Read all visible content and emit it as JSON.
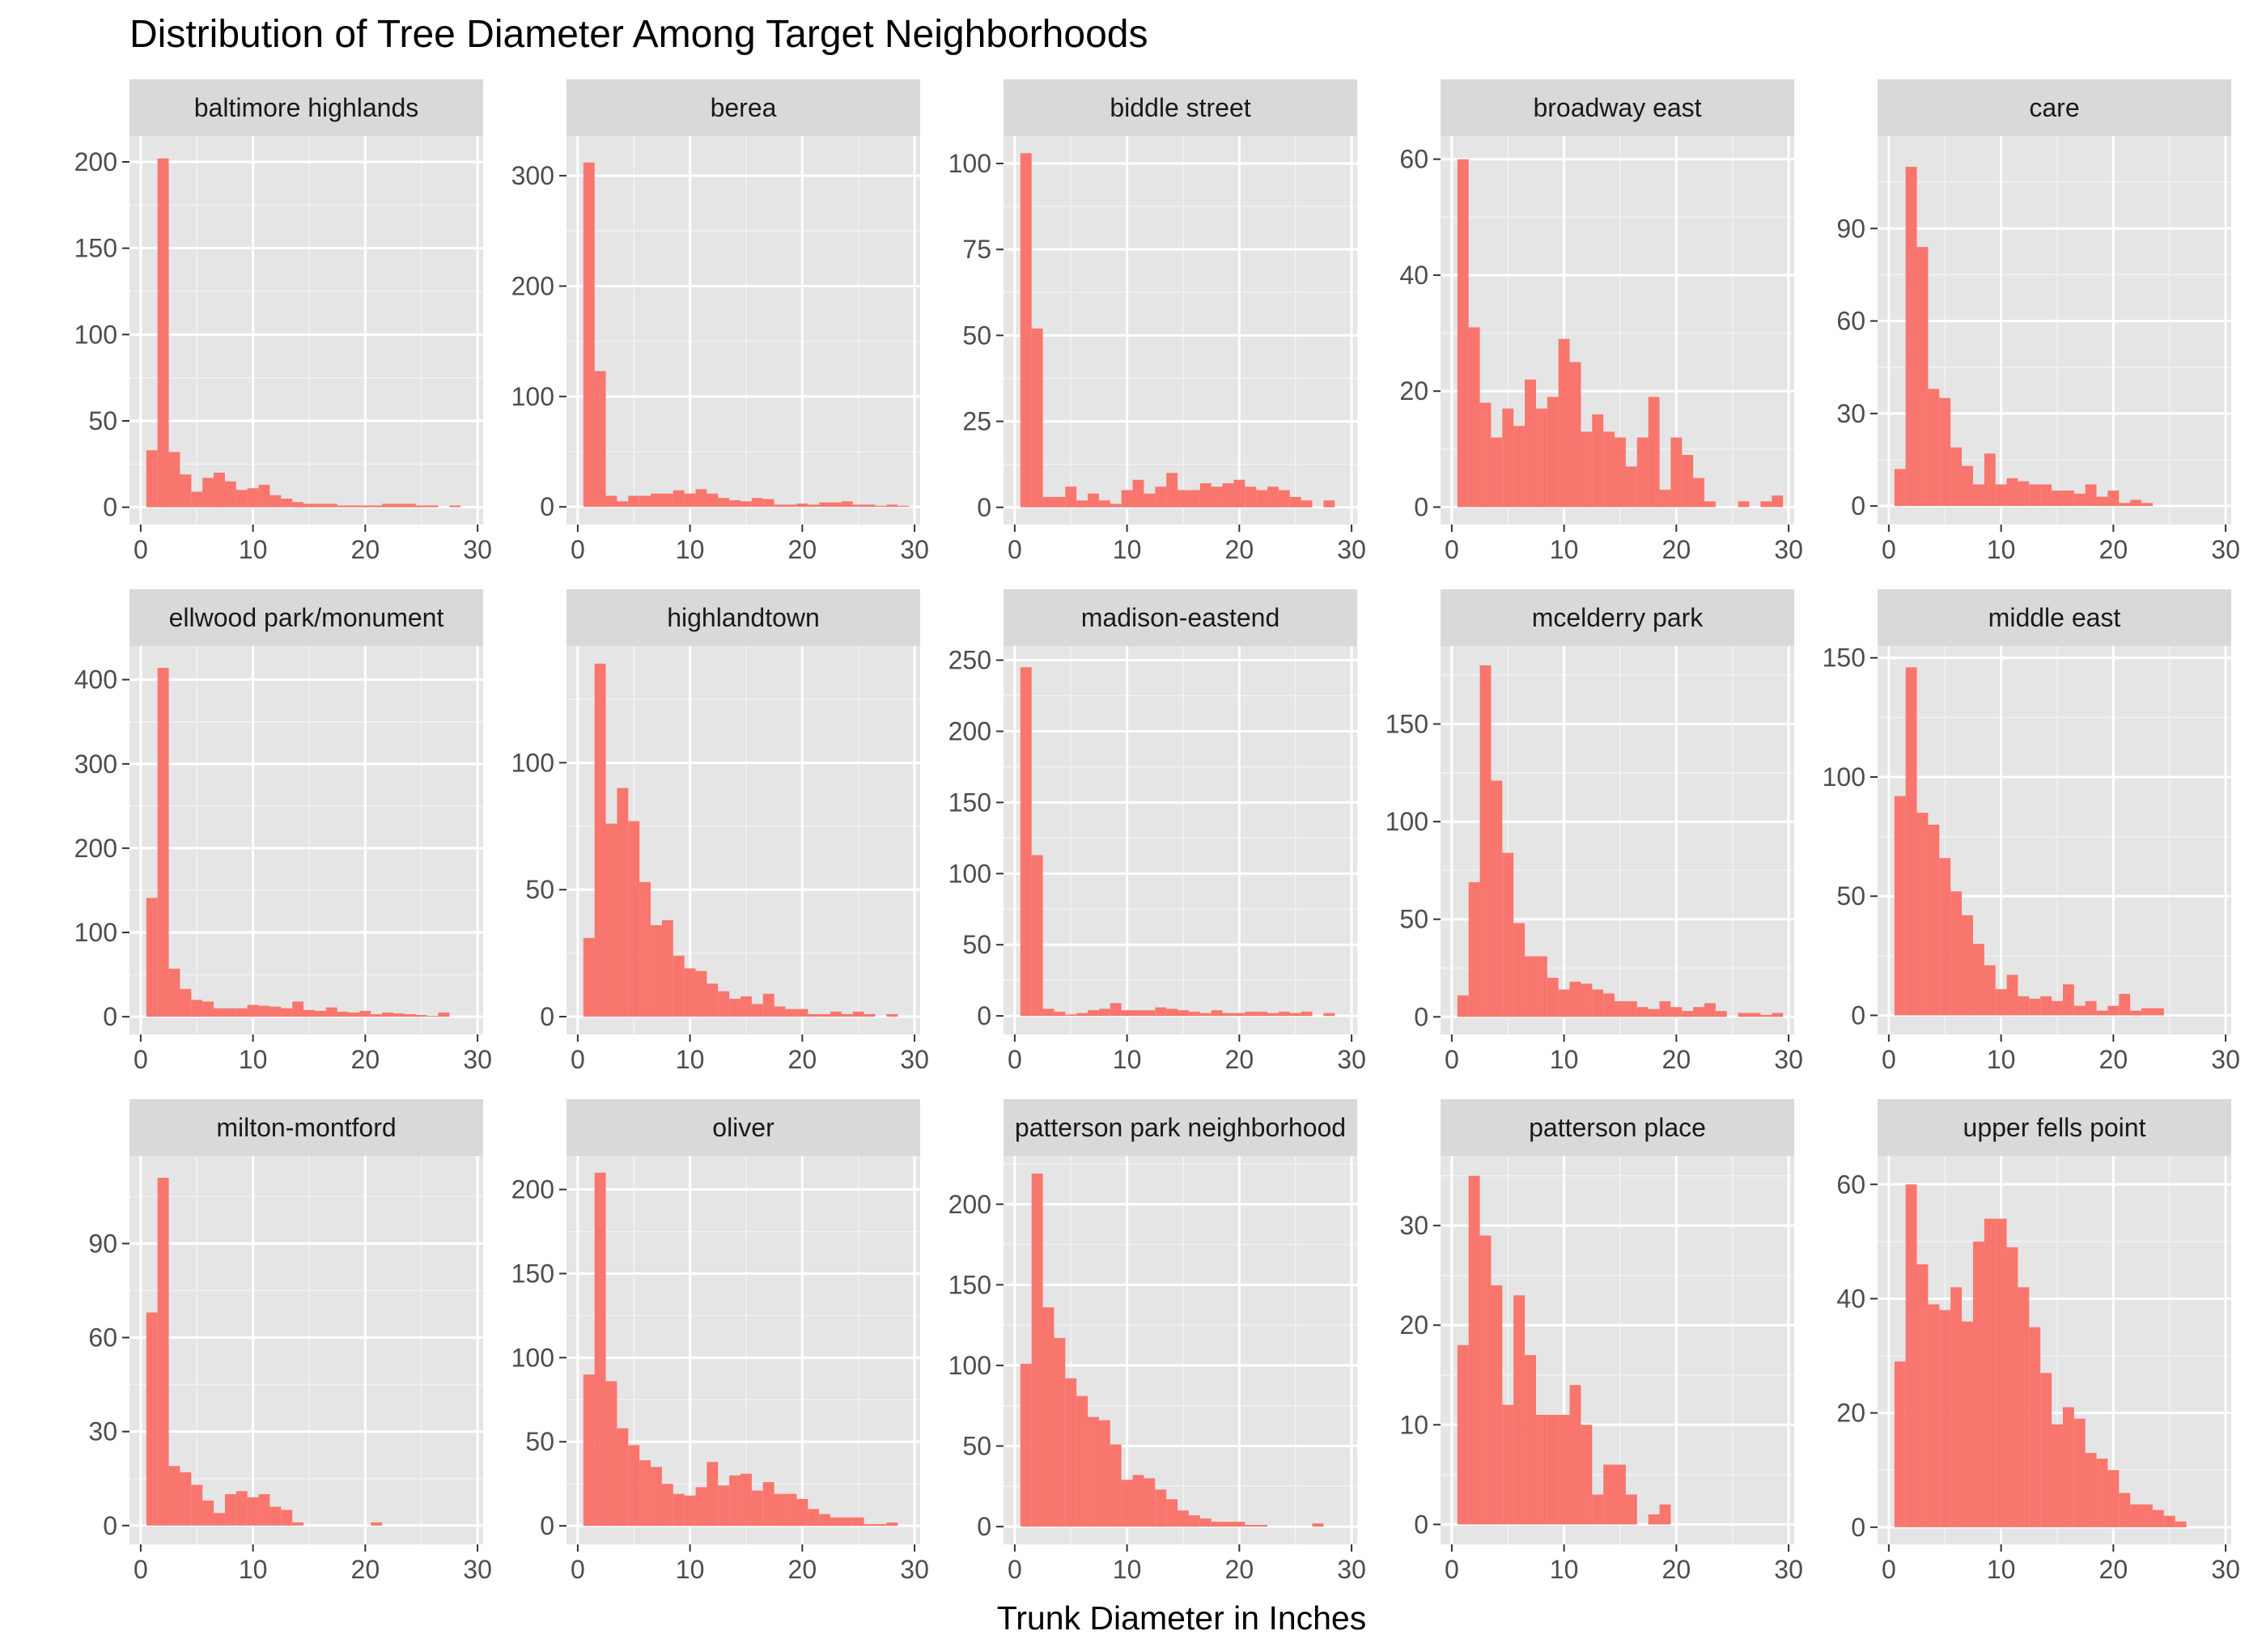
{
  "chart_data": {
    "type": "bar",
    "title": "Distribution of Tree Diameter Among Target Neighborhoods",
    "xlabel": "Trunk Diameter in Inches",
    "ylabel": "",
    "x_ticks": [
      0,
      10,
      20,
      30
    ],
    "xlim": [
      -1,
      30.5
    ],
    "bin_width": 1,
    "bin_centers": [
      1,
      2,
      3,
      4,
      5,
      6,
      7,
      8,
      9,
      10,
      11,
      12,
      13,
      14,
      15,
      16,
      17,
      18,
      19,
      20,
      21,
      22,
      23,
      24,
      25,
      26,
      27,
      28,
      29
    ],
    "grid": true,
    "legend": "none",
    "bar_color": "#F8766D",
    "panel_background": "#E5E5E5",
    "strip_background": "#D9D9D9",
    "panels": [
      {
        "name": "baltimore highlands",
        "y_ticks": [
          0,
          50,
          100,
          150,
          200
        ],
        "ylim": [
          -10,
          215
        ],
        "counts": [
          33,
          202,
          32,
          19,
          9,
          17,
          20,
          15,
          10,
          11,
          13,
          7,
          5,
          3,
          2,
          2,
          2,
          1,
          1,
          1,
          1,
          2,
          2,
          2,
          1,
          1,
          0,
          1,
          0
        ]
      },
      {
        "name": "berea",
        "y_ticks": [
          0,
          100,
          200,
          300
        ],
        "ylim": [
          -16,
          336
        ],
        "counts": [
          312,
          123,
          10,
          5,
          10,
          10,
          12,
          12,
          15,
          12,
          16,
          12,
          8,
          6,
          5,
          8,
          7,
          2,
          2,
          3,
          2,
          4,
          4,
          5,
          2,
          2,
          1,
          2,
          1
        ]
      },
      {
        "name": "biddle street",
        "y_ticks": [
          0,
          25,
          50,
          75,
          100
        ],
        "ylim": [
          -5,
          108
        ],
        "counts": [
          103,
          52,
          3,
          3,
          6,
          2,
          4,
          2,
          1,
          5,
          8,
          4,
          6,
          10,
          5,
          5,
          7,
          6,
          7,
          8,
          6,
          5,
          6,
          5,
          3,
          2,
          0,
          2,
          0
        ]
      },
      {
        "name": "broadway east",
        "y_ticks": [
          0,
          20,
          40,
          60
        ],
        "ylim": [
          -3,
          64
        ],
        "counts": [
          60,
          31,
          18,
          12,
          17,
          14,
          22,
          17,
          19,
          29,
          25,
          13,
          16,
          13,
          12,
          7,
          12,
          19,
          3,
          12,
          9,
          5,
          1,
          0,
          0,
          1,
          0,
          1,
          2
        ]
      },
      {
        "name": "care",
        "y_ticks": [
          0,
          30,
          60,
          90
        ],
        "ylim": [
          -6,
          120
        ],
        "counts": [
          12,
          110,
          84,
          38,
          35,
          19,
          13,
          7,
          17,
          7,
          9,
          8,
          7,
          7,
          5,
          5,
          4,
          7,
          3,
          5,
          1,
          2,
          1,
          0,
          0,
          0,
          0,
          0,
          0
        ]
      },
      {
        "name": "ellwood park/monument",
        "y_ticks": [
          0,
          100,
          200,
          300,
          400
        ],
        "ylim": [
          -21,
          440
        ],
        "counts": [
          141,
          414,
          57,
          33,
          20,
          18,
          10,
          10,
          10,
          14,
          13,
          12,
          10,
          18,
          8,
          7,
          11,
          6,
          5,
          7,
          3,
          5,
          4,
          3,
          2,
          1,
          5,
          0,
          0
        ]
      },
      {
        "name": "highlandtown",
        "y_ticks": [
          0,
          50,
          100
        ],
        "ylim": [
          -7,
          146
        ],
        "counts": [
          31,
          139,
          76,
          90,
          77,
          53,
          36,
          38,
          24,
          19,
          18,
          13,
          10,
          7,
          8,
          5,
          9,
          4,
          3,
          3,
          1,
          1,
          2,
          1,
          2,
          1,
          0,
          1,
          0
        ]
      },
      {
        "name": "madison-eastend",
        "y_ticks": [
          0,
          50,
          100,
          150,
          200,
          250
        ],
        "ylim": [
          -13,
          260
        ],
        "counts": [
          245,
          113,
          5,
          3,
          1,
          2,
          4,
          5,
          9,
          4,
          4,
          4,
          6,
          5,
          4,
          3,
          2,
          4,
          2,
          2,
          3,
          3,
          2,
          3,
          2,
          3,
          0,
          2,
          0
        ]
      },
      {
        "name": "mcelderry park",
        "y_ticks": [
          0,
          50,
          100,
          150
        ],
        "ylim": [
          -9,
          190
        ],
        "counts": [
          11,
          69,
          180,
          121,
          84,
          48,
          31,
          31,
          20,
          14,
          18,
          17,
          14,
          12,
          8,
          8,
          5,
          4,
          8,
          5,
          3,
          5,
          7,
          3,
          0,
          2,
          2,
          1,
          2
        ]
      },
      {
        "name": "middle east",
        "y_ticks": [
          0,
          50,
          100,
          150
        ],
        "ylim": [
          -8,
          155
        ],
        "counts": [
          92,
          146,
          85,
          80,
          66,
          52,
          42,
          30,
          21,
          11,
          17,
          8,
          7,
          8,
          6,
          13,
          4,
          6,
          2,
          4,
          9,
          2,
          3,
          3,
          0,
          0,
          0,
          0,
          0
        ]
      },
      {
        "name": "milton-montford",
        "y_ticks": [
          0,
          30,
          60,
          90
        ],
        "ylim": [
          -6,
          118
        ],
        "counts": [
          68,
          111,
          19,
          17,
          13,
          8,
          4,
          10,
          11,
          9,
          10,
          6,
          5,
          1,
          0,
          0,
          0,
          0,
          0,
          0,
          1,
          0,
          0,
          0,
          0,
          0,
          0,
          0,
          0
        ]
      },
      {
        "name": "oliver",
        "y_ticks": [
          0,
          50,
          100,
          150,
          200
        ],
        "ylim": [
          -11,
          220
        ],
        "counts": [
          90,
          210,
          86,
          58,
          48,
          39,
          35,
          25,
          19,
          18,
          23,
          38,
          24,
          30,
          31,
          21,
          26,
          19,
          19,
          16,
          10,
          7,
          5,
          5,
          5,
          1,
          1,
          2,
          0
        ]
      },
      {
        "name": "patterson park neighborhood",
        "y_ticks": [
          0,
          50,
          100,
          150,
          200
        ],
        "ylim": [
          -11,
          230
        ],
        "counts": [
          101,
          219,
          136,
          117,
          92,
          81,
          68,
          66,
          51,
          29,
          32,
          30,
          23,
          17,
          10,
          7,
          5,
          3,
          3,
          3,
          1,
          1,
          0,
          0,
          0,
          0,
          2,
          0,
          0
        ]
      },
      {
        "name": "patterson place",
        "y_ticks": [
          0,
          10,
          20,
          30
        ],
        "ylim": [
          -2,
          37
        ],
        "counts": [
          18,
          35,
          29,
          24,
          12,
          23,
          17,
          11,
          11,
          11,
          14,
          10,
          3,
          6,
          6,
          3,
          0,
          1,
          2,
          0,
          0,
          0,
          0,
          0,
          0,
          0,
          0,
          0,
          0
        ]
      },
      {
        "name": "upper fells point",
        "y_ticks": [
          0,
          20,
          40,
          60
        ],
        "ylim": [
          -3,
          65
        ],
        "counts": [
          29,
          60,
          46,
          39,
          38,
          42,
          36,
          50,
          54,
          54,
          49,
          42,
          35,
          27,
          18,
          21,
          19,
          13,
          12,
          10,
          6,
          4,
          4,
          3,
          2,
          1,
          0,
          0,
          0
        ]
      }
    ]
  }
}
